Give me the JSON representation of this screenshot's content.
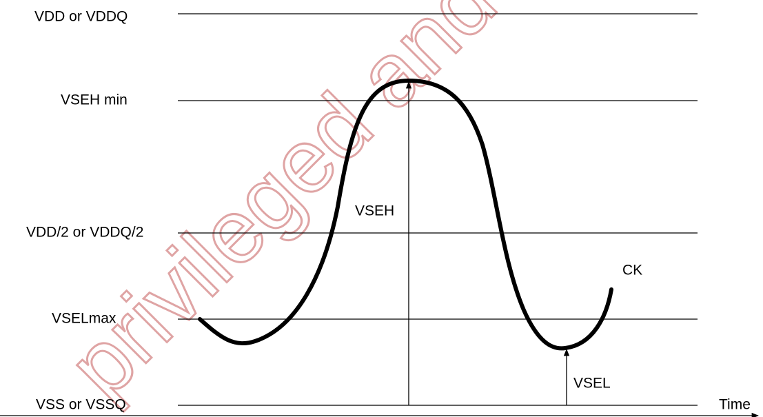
{
  "levels": [
    "VDD or VDDQ",
    "VSEH min",
    "VDD/2 or VDDQ/2",
    "VSELmax",
    "VSS or VSSQ"
  ],
  "signal": "CK",
  "arrows": {
    "high": "VSEH",
    "low": "VSEL"
  },
  "axis": "Time",
  "watermark": "privileged and Co"
}
